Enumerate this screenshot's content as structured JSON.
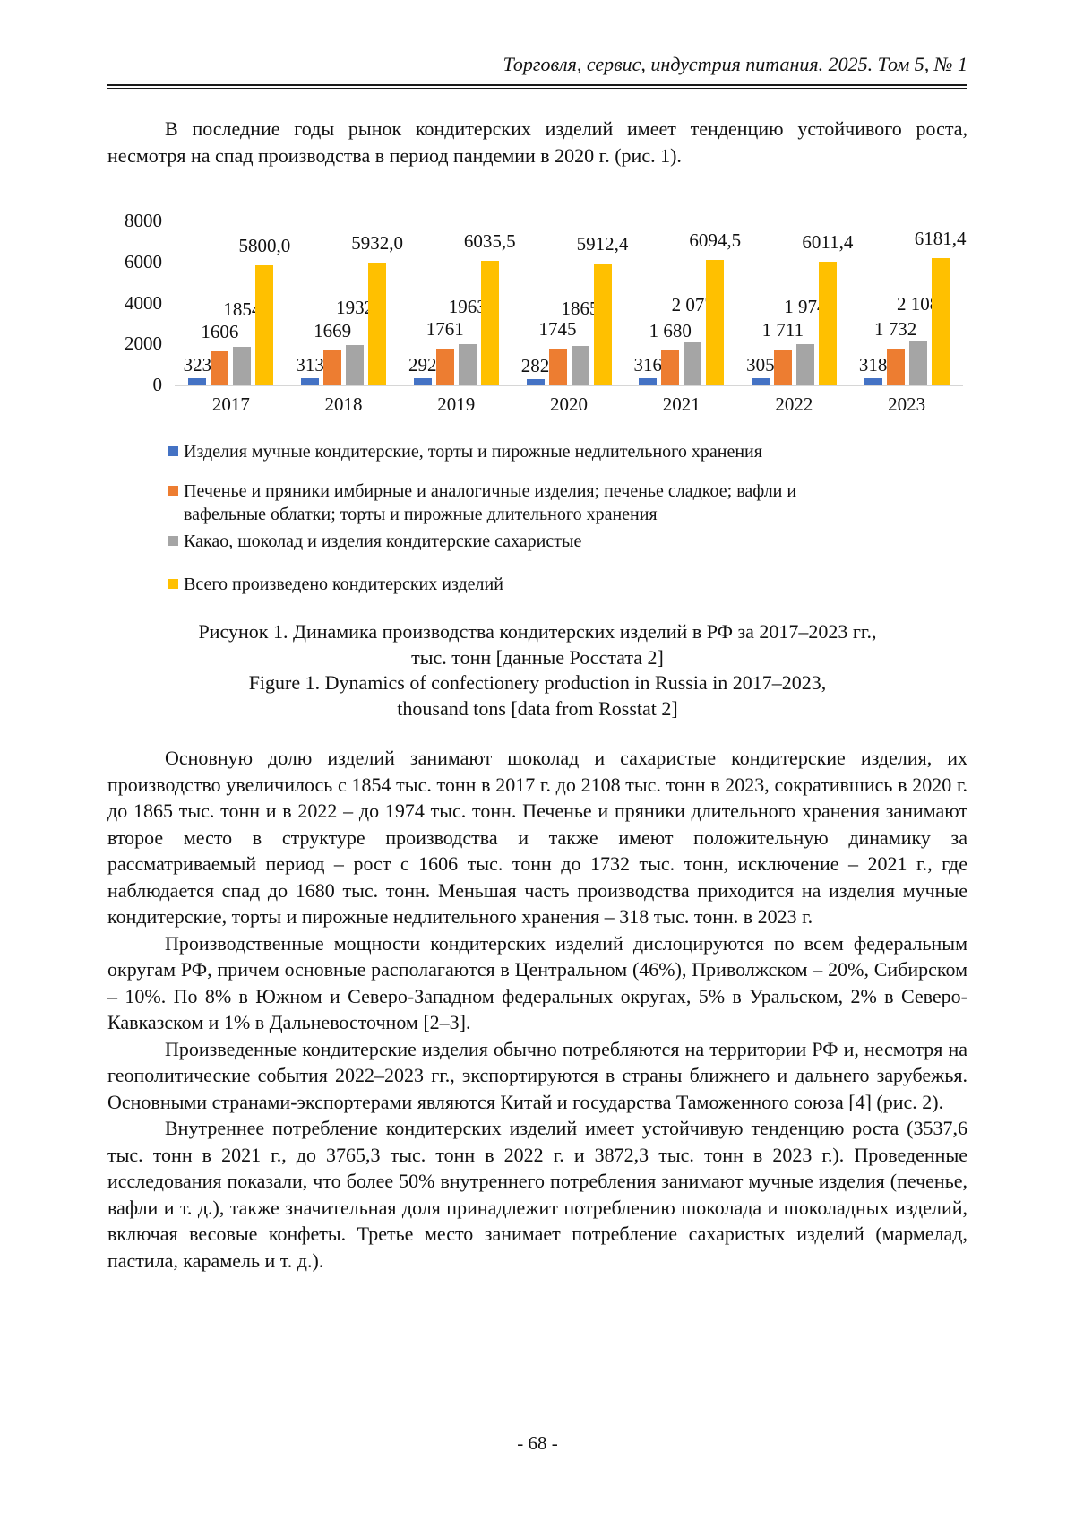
{
  "page": {
    "header": "Торговля, сервис, индустрия питания. 2025. Том 5, № 1",
    "footer": "- 68 -"
  },
  "intro": "В последние годы рынок кондитерских изделий имеет тенденцию устойчивого роста, несмотря на спад производства в период пандемии в 2020 г. (рис. 1).",
  "chart_data": {
    "type": "bar",
    "categories": [
      "2017",
      "2018",
      "2019",
      "2020",
      "2021",
      "2022",
      "2023"
    ],
    "series": [
      {
        "name": "Изделия мучные кондитерские, торты и пирожные недлительного хранения",
        "color": "#4472C4",
        "values": [
          323,
          313,
          292,
          282,
          316,
          305,
          318
        ],
        "labels": [
          "323",
          "313",
          "292",
          "282",
          "316",
          "305",
          "318"
        ]
      },
      {
        "name": "Печенье и пряники имбирные и аналогичные изделия; печенье сладкое; вафли и вафельные облатки; торты и пирожные длительного хранения",
        "color": "#ED7D31",
        "values": [
          1606,
          1669,
          1761,
          1745,
          1680,
          1711,
          1732
        ],
        "labels": [
          "1606",
          "1669",
          "1761",
          "1745",
          "1 680",
          "1 711",
          "1 732"
        ]
      },
      {
        "name": "Какао, шоколад и изделия кондитерские сахаристые",
        "color": "#A5A5A5",
        "values": [
          1854,
          1932,
          1963,
          1865,
          2077,
          1974,
          2108
        ],
        "labels": [
          "1854",
          "1932",
          "1963",
          "1865",
          "2 077",
          "1 974",
          "2 108"
        ]
      },
      {
        "name": "Всего произведено кондитерских изделий",
        "color": "#FFC000",
        "values": [
          5800.0,
          5932.0,
          6035.5,
          5912.4,
          6094.5,
          6011.4,
          6181.4
        ],
        "labels": [
          "5800,0",
          "5932,0",
          "6035,5",
          "5912,4",
          "6094,5",
          "6011,4",
          "6181,4"
        ]
      }
    ],
    "ylim": [
      0,
      8000
    ],
    "yticks": [
      0,
      2000,
      4000,
      6000,
      8000
    ],
    "grid": false,
    "legend_position": "bottom-left",
    "axis_line_color": "#d6d6d6"
  },
  "caption": {
    "ru_line1": "Рисунок 1. Динамика производства кондитерских изделий в РФ за 2017–2023 гг.,",
    "ru_line2": "тыс. тонн [данные Росстата 2]",
    "en_line1": "Figure 1. Dynamics of confectionery production in Russia in 2017–2023,",
    "en_line2": "thousand tons [data from Rosstat 2]"
  },
  "paragraphs": [
    "Основную долю изделий занимают шоколад и сахаристые кондитерские изделия, их производство увеличилось с 1854 тыс. тонн в 2017 г. до 2108 тыс. тонн в 2023, сократившись в 2020 г. до 1865 тыс. тонн и в 2022 – до 1974 тыс. тонн. Печенье и пряники длительного хранения занимают второе место в структуре производства и также имеют положительную динамику за рассматриваемый период – рост с 1606 тыс. тонн до 1732 тыс. тонн, исключение – 2021 г., где наблюдается спад до 1680 тыс. тонн. Меньшая часть производства приходится на изделия мучные кондитерские, торты и пирожные недлительного хранения – 318 тыс. тонн. в 2023 г.",
    "Производственные мощности кондитерских изделий дислоцируются по всем федеральным округам РФ, причем основные располагаются в Центральном (46%), Приволжском – 20%, Сибирском – 10%. По 8% в Южном и Северо-Западном федеральных округах, 5% в Уральском, 2% в Северо-Кавказском и 1% в Дальневосточном [2–3].",
    "Произведенные кондитерские изделия обычно потребляются на территории РФ и, несмотря на геополитические события 2022–2023 гг., экспортируются в страны ближнего и дальнего зарубежья. Основными странами-экспортерами являются Китай и государства Таможенного союза [4] (рис. 2).",
    "Внутреннее потребление кондитерских изделий имеет устойчивую тенденцию роста (3537,6 тыс. тонн в 2021 г., до 3765,3 тыс. тонн в 2022 г. и 3872,3 тыс. тонн в 2023 г.). Проведенные исследования показали, что более 50% внутреннего потребления занимают мучные изделия (печенье, вафли и т. д.), также значительная доля принадлежит потреблению шоколада и шоколадных изделий, включая весовые конфеты. Третье место занимает потребление сахаристых изделий (мармелад, пастила, карамель и т. д.)."
  ]
}
